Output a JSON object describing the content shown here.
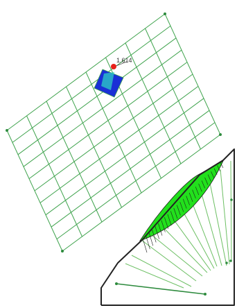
{
  "grid_view": {
    "value_label": "1.614",
    "grid_color": "#3fa34d",
    "node_color": "#2e8b3e",
    "marker_color": "#e8201a",
    "highlight_color": "#1a2fd6",
    "highlight_accent": "#2ecfc4"
  },
  "slip_view": {
    "boundary_color": "#222222",
    "slice_color": "#6cbf63",
    "failure_fill": "#22e01c",
    "hatch_color": "#1a1a1a",
    "anchor_color": "#2e8b3e"
  }
}
